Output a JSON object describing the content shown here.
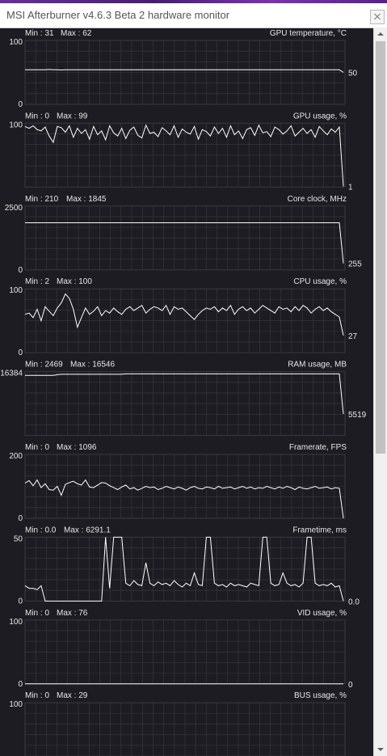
{
  "window": {
    "title": "MSI Afterburner v4.6.3 Beta 2 hardware monitor"
  },
  "graphs": [
    {
      "id": "gpu_temp",
      "name": "GPU temperature, °C",
      "min_label": "Min : 31",
      "max_label": "Max : 62",
      "scale_max": "100",
      "scale_min": "0",
      "current": "50",
      "ymax": 100,
      "values": [
        54,
        54,
        54,
        54.2,
        54,
        54,
        54.5,
        54,
        54,
        53.8,
        54,
        54,
        54,
        54,
        54,
        54.2,
        54,
        54,
        54,
        54,
        54,
        54,
        54,
        54,
        54,
        54,
        54,
        54,
        54,
        54,
        54,
        54,
        54,
        54,
        54,
        54,
        54,
        54,
        54,
        54,
        54,
        54,
        54,
        54,
        54,
        54,
        54,
        54,
        54,
        54,
        54,
        54,
        54,
        54,
        54,
        54,
        54,
        54,
        54,
        54,
        54,
        54,
        54,
        54,
        54,
        54,
        54,
        54,
        54,
        54,
        54,
        54,
        54,
        54,
        54,
        54,
        54,
        54,
        54,
        50
      ]
    },
    {
      "id": "gpu_usage",
      "name": "GPU usage, %",
      "min_label": "Min : 0",
      "max_label": "Max : 99",
      "scale_max": "100",
      "scale_min": "",
      "current": "1",
      "ymax": 100,
      "values": [
        95,
        92,
        96,
        90,
        88,
        94,
        80,
        70,
        95,
        93,
        86,
        96,
        78,
        92,
        84,
        90,
        75,
        95,
        82,
        88,
        74,
        96,
        85,
        80,
        92,
        76,
        89,
        94,
        81,
        77,
        97,
        84,
        86,
        79,
        93,
        88,
        82,
        96,
        78,
        91,
        86,
        83,
        95,
        75,
        90,
        87,
        80,
        94,
        84,
        92,
        78,
        96,
        82,
        88,
        76,
        90,
        93,
        81,
        97,
        85,
        87,
        79,
        94,
        90,
        83,
        88,
        96,
        80,
        86,
        92,
        84,
        90,
        78,
        95,
        88,
        82,
        91,
        86,
        94,
        1
      ]
    },
    {
      "id": "core_clock",
      "name": "Core clock, MHz",
      "min_label": "Min : 210",
      "max_label": "Max : 1845",
      "scale_max": "2500",
      "scale_min": "0",
      "current": "255",
      "ymax": 2500,
      "values": [
        1845,
        1845,
        1845,
        1845,
        1845,
        1845,
        1845,
        1845,
        1845,
        1845,
        1845,
        1845,
        1845,
        1845,
        1845,
        1845,
        1845,
        1845,
        1845,
        1845,
        1845,
        1845,
        1845,
        1845,
        1845,
        1845,
        1845,
        1845,
        1845,
        1845,
        1845,
        1845,
        1845,
        1845,
        1845,
        1845,
        1845,
        1845,
        1845,
        1845,
        1845,
        1845,
        1845,
        1845,
        1845,
        1845,
        1845,
        1845,
        1845,
        1845,
        1845,
        1845,
        1845,
        1845,
        1845,
        1845,
        1845,
        1845,
        1845,
        1845,
        1845,
        1845,
        1845,
        1845,
        1845,
        1845,
        1845,
        1845,
        1845,
        1845,
        1845,
        1845,
        1845,
        1845,
        1845,
        1845,
        1845,
        1845,
        1845,
        255
      ]
    },
    {
      "id": "cpu_usage",
      "name": "CPU usage, %",
      "min_label": "Min : 2",
      "max_label": "Max : 100",
      "scale_max": "100",
      "scale_min": "0",
      "current": "27",
      "ymax": 100,
      "values": [
        60,
        62,
        55,
        68,
        50,
        72,
        65,
        58,
        70,
        78,
        92,
        85,
        68,
        40,
        55,
        70,
        60,
        65,
        72,
        58,
        66,
        62,
        70,
        64,
        60,
        68,
        72,
        66,
        70,
        74,
        62,
        68,
        72,
        70,
        66,
        74,
        60,
        72,
        68,
        70,
        64,
        58,
        52,
        60,
        66,
        70,
        68,
        72,
        64,
        70,
        66,
        74,
        60,
        68,
        72,
        66,
        70,
        62,
        68,
        74,
        70,
        66,
        62,
        72,
        68,
        70,
        64,
        72,
        66,
        74,
        70,
        62,
        68,
        72,
        66,
        70,
        64,
        60,
        56,
        27
      ]
    },
    {
      "id": "ram_usage",
      "name": "RAM usage, MB",
      "min_label": "Min : 2469",
      "max_label": "Max : 16546",
      "scale_max": "16384",
      "scale_min": "",
      "current": "5519",
      "ymax": 16384,
      "values": [
        15400,
        15400,
        15400,
        15400,
        15400,
        15400,
        15400,
        15420,
        15600,
        15700,
        15700,
        15700,
        15700,
        15700,
        15700,
        15700,
        15700,
        15700,
        15700,
        15700,
        15700,
        15700,
        15700,
        15700,
        15700,
        15800,
        15800,
        15800,
        15800,
        15800,
        15800,
        15800,
        15800,
        15800,
        15800,
        15800,
        15800,
        15800,
        15800,
        15800,
        15800,
        15800,
        15800,
        15800,
        15800,
        15800,
        15800,
        15800,
        15800,
        15800,
        15800,
        15800,
        15800,
        15800,
        15800,
        15800,
        15800,
        15800,
        15800,
        15800,
        15800,
        15800,
        15800,
        15800,
        15800,
        15800,
        15800,
        15800,
        15800,
        15800,
        15800,
        15800,
        15800,
        15800,
        15800,
        15800,
        15800,
        15800,
        15800,
        5519
      ]
    },
    {
      "id": "framerate",
      "name": "Framerate, FPS",
      "min_label": "Min : 0",
      "max_label": "Max : 1096",
      "scale_max": "200",
      "scale_min": "0",
      "current": "",
      "ymax": 200,
      "values": [
        110,
        118,
        102,
        120,
        96,
        108,
        90,
        88,
        100,
        72,
        106,
        112,
        116,
        108,
        104,
        120,
        98,
        96,
        104,
        112,
        110,
        102,
        96,
        90,
        98,
        104,
        92,
        96,
        88,
        94,
        100,
        96,
        98,
        90,
        94,
        100,
        96,
        92,
        98,
        94,
        88,
        96,
        100,
        94,
        92,
        98,
        96,
        92,
        100,
        94,
        96,
        98,
        92,
        96,
        100,
        94,
        98,
        92,
        96,
        94,
        100,
        96,
        92,
        98,
        94,
        100,
        96,
        90,
        98,
        94,
        92,
        96,
        100,
        94,
        96,
        98,
        92,
        96,
        94,
        0
      ]
    },
    {
      "id": "frametime",
      "name": "Frametime, ms",
      "min_label": "Min : 0.0",
      "max_label": "Max : 6291.1",
      "scale_max": "50",
      "scale_min": "0",
      "current": "0.0",
      "ymax": 50,
      "values": [
        12,
        10,
        10,
        9,
        12,
        0,
        0,
        0,
        0,
        0,
        0,
        0,
        0,
        0,
        0,
        0,
        0,
        0,
        0,
        0,
        50,
        10,
        50,
        50,
        50,
        14,
        12,
        16,
        13,
        12,
        30,
        14,
        12,
        15,
        13,
        14,
        12,
        16,
        13,
        11,
        14,
        12,
        22,
        13,
        12,
        50,
        50,
        14,
        12,
        13,
        11,
        14,
        12,
        13,
        12,
        11,
        14,
        13,
        12,
        50,
        50,
        14,
        12,
        13,
        22,
        14,
        12,
        13,
        11,
        14,
        50,
        50,
        14,
        12,
        13,
        12,
        14,
        11,
        12,
        0
      ]
    },
    {
      "id": "vid_usage",
      "name": "VID usage, %",
      "min_label": "Min : 0",
      "max_label": "Max : 76",
      "scale_max": "100",
      "scale_min": "0",
      "current": "0",
      "ymax": 100,
      "values": [
        0,
        0,
        0,
        0,
        0,
        0,
        0,
        0,
        0,
        0,
        0,
        0,
        0,
        0,
        0,
        0,
        0,
        0,
        0,
        0,
        0,
        0,
        0,
        0,
        0,
        0,
        0,
        0,
        0,
        0,
        0,
        0,
        0,
        0,
        0,
        0,
        0,
        0,
        0,
        0,
        0,
        0,
        0,
        0,
        0,
        0,
        0,
        0,
        0,
        0,
        0,
        0,
        0,
        0,
        0,
        0,
        0,
        0,
        0,
        0,
        0,
        0,
        0,
        0,
        0,
        0,
        0,
        0,
        0,
        0,
        0,
        0,
        0,
        0,
        0,
        0,
        0,
        0,
        0,
        0
      ]
    },
    {
      "id": "bus_usage",
      "name": "BUS usage, %",
      "min_label": "Min : 0",
      "max_label": "Max : 29",
      "scale_max": "100",
      "scale_min": "",
      "current": "",
      "ymax": 100,
      "values": []
    }
  ],
  "colors": {
    "background": "#1d1c22",
    "grid": "#3a3a40",
    "line": "#ffffff",
    "text": "#e6e6e6"
  }
}
